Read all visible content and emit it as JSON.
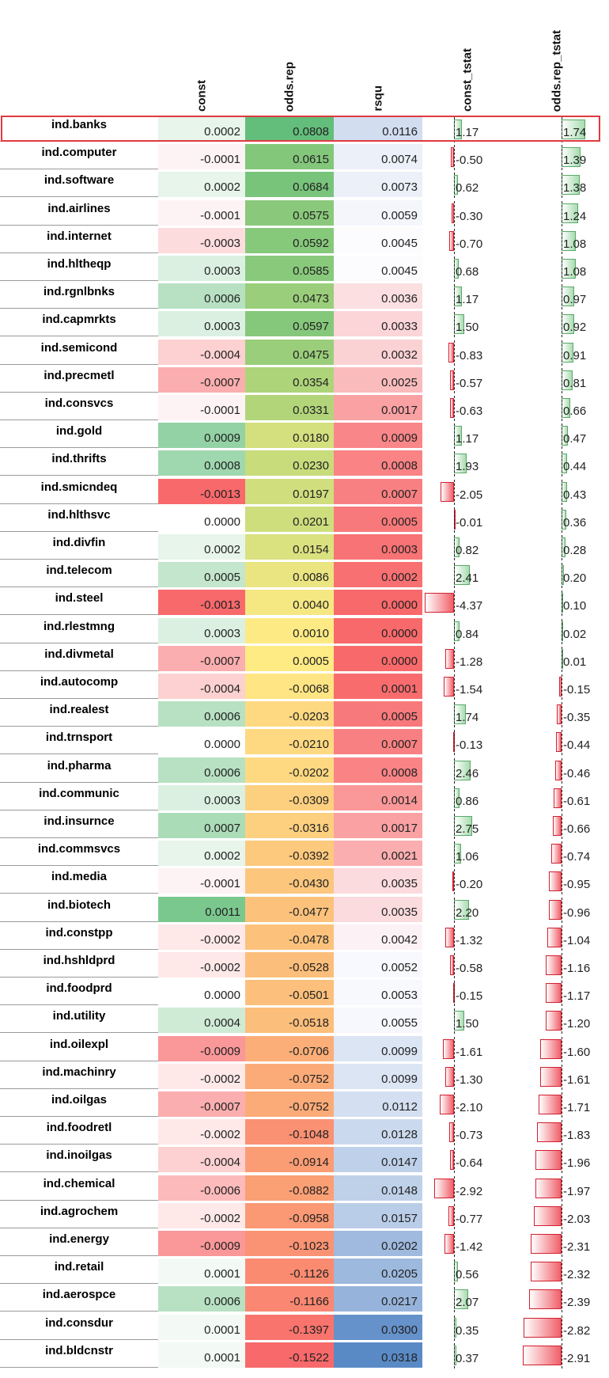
{
  "chart_data": {
    "type": "table",
    "columns": [
      "const",
      "odds.rep",
      "rsqu",
      "const_tstat",
      "odds.rep_tstat"
    ],
    "highlighted_row": "ind.banks",
    "rows": [
      {
        "name": "ind.banks",
        "const": "0.0002",
        "odds": "0.0808",
        "rsqu": "0.0116",
        "ct": "1.17",
        "ot": "1.74"
      },
      {
        "name": "ind.computer",
        "const": "-0.0001",
        "odds": "0.0615",
        "rsqu": "0.0074",
        "ct": "-0.50",
        "ot": "1.39"
      },
      {
        "name": "ind.software",
        "const": "0.0002",
        "odds": "0.0684",
        "rsqu": "0.0073",
        "ct": "0.62",
        "ot": "1.38"
      },
      {
        "name": "ind.airlines",
        "const": "-0.0001",
        "odds": "0.0575",
        "rsqu": "0.0059",
        "ct": "-0.30",
        "ot": "1.24"
      },
      {
        "name": "ind.internet",
        "const": "-0.0003",
        "odds": "0.0592",
        "rsqu": "0.0045",
        "ct": "-0.70",
        "ot": "1.08"
      },
      {
        "name": "ind.hltheqp",
        "const": "0.0003",
        "odds": "0.0585",
        "rsqu": "0.0045",
        "ct": "0.68",
        "ot": "1.08"
      },
      {
        "name": "ind.rgnlbnks",
        "const": "0.0006",
        "odds": "0.0473",
        "rsqu": "0.0036",
        "ct": "1.17",
        "ot": "0.97"
      },
      {
        "name": "ind.capmrkts",
        "const": "0.0003",
        "odds": "0.0597",
        "rsqu": "0.0033",
        "ct": "1.50",
        "ot": "0.92"
      },
      {
        "name": "ind.semicond",
        "const": "-0.0004",
        "odds": "0.0475",
        "rsqu": "0.0032",
        "ct": "-0.83",
        "ot": "0.91"
      },
      {
        "name": "ind.precmetl",
        "const": "-0.0007",
        "odds": "0.0354",
        "rsqu": "0.0025",
        "ct": "-0.57",
        "ot": "0.81"
      },
      {
        "name": "ind.consvcs",
        "const": "-0.0001",
        "odds": "0.0331",
        "rsqu": "0.0017",
        "ct": "-0.63",
        "ot": "0.66"
      },
      {
        "name": "ind.gold",
        "const": "0.0009",
        "odds": "0.0180",
        "rsqu": "0.0009",
        "ct": "1.17",
        "ot": "0.47"
      },
      {
        "name": "ind.thrifts",
        "const": "0.0008",
        "odds": "0.0230",
        "rsqu": "0.0008",
        "ct": "1.93",
        "ot": "0.44"
      },
      {
        "name": "ind.smicndeq",
        "const": "-0.0013",
        "odds": "0.0197",
        "rsqu": "0.0007",
        "ct": "-2.05",
        "ot": "0.43"
      },
      {
        "name": "ind.hlthsvc",
        "const": "0.0000",
        "odds": "0.0201",
        "rsqu": "0.0005",
        "ct": "-0.01",
        "ot": "0.36"
      },
      {
        "name": "ind.divfin",
        "const": "0.0002",
        "odds": "0.0154",
        "rsqu": "0.0003",
        "ct": "0.82",
        "ot": "0.28"
      },
      {
        "name": "ind.telecom",
        "const": "0.0005",
        "odds": "0.0086",
        "rsqu": "0.0002",
        "ct": "2.41",
        "ot": "0.20"
      },
      {
        "name": "ind.steel",
        "const": "-0.0013",
        "odds": "0.0040",
        "rsqu": "0.0000",
        "ct": "-4.37",
        "ot": "0.10"
      },
      {
        "name": "ind.rlestmng",
        "const": "0.0003",
        "odds": "0.0010",
        "rsqu": "0.0000",
        "ct": "0.84",
        "ot": "0.02"
      },
      {
        "name": "ind.divmetal",
        "const": "-0.0007",
        "odds": "0.0005",
        "rsqu": "0.0000",
        "ct": "-1.28",
        "ot": "0.01"
      },
      {
        "name": "ind.autocomp",
        "const": "-0.0004",
        "odds": "-0.0068",
        "rsqu": "0.0001",
        "ct": "-1.54",
        "ot": "-0.15"
      },
      {
        "name": "ind.realest",
        "const": "0.0006",
        "odds": "-0.0203",
        "rsqu": "0.0005",
        "ct": "1.74",
        "ot": "-0.35"
      },
      {
        "name": "ind.trnsport",
        "const": "0.0000",
        "odds": "-0.0210",
        "rsqu": "0.0007",
        "ct": "-0.13",
        "ot": "-0.44"
      },
      {
        "name": "ind.pharma",
        "const": "0.0006",
        "odds": "-0.0202",
        "rsqu": "0.0008",
        "ct": "2.46",
        "ot": "-0.46"
      },
      {
        "name": "ind.communic",
        "const": "0.0003",
        "odds": "-0.0309",
        "rsqu": "0.0014",
        "ct": "0.86",
        "ot": "-0.61"
      },
      {
        "name": "ind.insurnce",
        "const": "0.0007",
        "odds": "-0.0316",
        "rsqu": "0.0017",
        "ct": "2.75",
        "ot": "-0.66"
      },
      {
        "name": "ind.commsvcs",
        "const": "0.0002",
        "odds": "-0.0392",
        "rsqu": "0.0021",
        "ct": "1.06",
        "ot": "-0.74"
      },
      {
        "name": "ind.media",
        "const": "-0.0001",
        "odds": "-0.0430",
        "rsqu": "0.0035",
        "ct": "-0.20",
        "ot": "-0.95"
      },
      {
        "name": "ind.biotech",
        "const": "0.0011",
        "odds": "-0.0477",
        "rsqu": "0.0035",
        "ct": "2.20",
        "ot": "-0.96"
      },
      {
        "name": "ind.constpp",
        "const": "-0.0002",
        "odds": "-0.0478",
        "rsqu": "0.0042",
        "ct": "-1.32",
        "ot": "-1.04"
      },
      {
        "name": "ind.hshldprd",
        "const": "-0.0002",
        "odds": "-0.0528",
        "rsqu": "0.0052",
        "ct": "-0.58",
        "ot": "-1.16"
      },
      {
        "name": "ind.foodprd",
        "const": "0.0000",
        "odds": "-0.0501",
        "rsqu": "0.0053",
        "ct": "-0.15",
        "ot": "-1.17"
      },
      {
        "name": "ind.utility",
        "const": "0.0004",
        "odds": "-0.0518",
        "rsqu": "0.0055",
        "ct": "1.50",
        "ot": "-1.20"
      },
      {
        "name": "ind.oilexpl",
        "const": "-0.0009",
        "odds": "-0.0706",
        "rsqu": "0.0099",
        "ct": "-1.61",
        "ot": "-1.60"
      },
      {
        "name": "ind.machinry",
        "const": "-0.0002",
        "odds": "-0.0752",
        "rsqu": "0.0099",
        "ct": "-1.30",
        "ot": "-1.61"
      },
      {
        "name": "ind.oilgas",
        "const": "-0.0007",
        "odds": "-0.0752",
        "rsqu": "0.0112",
        "ct": "-2.10",
        "ot": "-1.71"
      },
      {
        "name": "ind.foodretl",
        "const": "-0.0002",
        "odds": "-0.1048",
        "rsqu": "0.0128",
        "ct": "-0.73",
        "ot": "-1.83"
      },
      {
        "name": "ind.inoilgas",
        "const": "-0.0004",
        "odds": "-0.0914",
        "rsqu": "0.0147",
        "ct": "-0.64",
        "ot": "-1.96"
      },
      {
        "name": "ind.chemical",
        "const": "-0.0006",
        "odds": "-0.0882",
        "rsqu": "0.0148",
        "ct": "-2.92",
        "ot": "-1.97"
      },
      {
        "name": "ind.agrochem",
        "const": "-0.0002",
        "odds": "-0.0958",
        "rsqu": "0.0157",
        "ct": "-0.77",
        "ot": "-2.03"
      },
      {
        "name": "ind.energy",
        "const": "-0.0009",
        "odds": "-0.1023",
        "rsqu": "0.0202",
        "ct": "-1.42",
        "ot": "-2.31"
      },
      {
        "name": "ind.retail",
        "const": "0.0001",
        "odds": "-0.1126",
        "rsqu": "0.0205",
        "ct": "0.56",
        "ot": "-2.32"
      },
      {
        "name": "ind.aerospce",
        "const": "0.0006",
        "odds": "-0.1166",
        "rsqu": "0.0217",
        "ct": "2.07",
        "ot": "-2.39"
      },
      {
        "name": "ind.consdur",
        "const": "0.0001",
        "odds": "-0.1397",
        "rsqu": "0.0300",
        "ct": "0.35",
        "ot": "-2.82"
      },
      {
        "name": "ind.bldcnstr",
        "const": "0.0001",
        "odds": "-0.1522",
        "rsqu": "0.0318",
        "ct": "0.37",
        "ot": "-2.91"
      }
    ]
  }
}
